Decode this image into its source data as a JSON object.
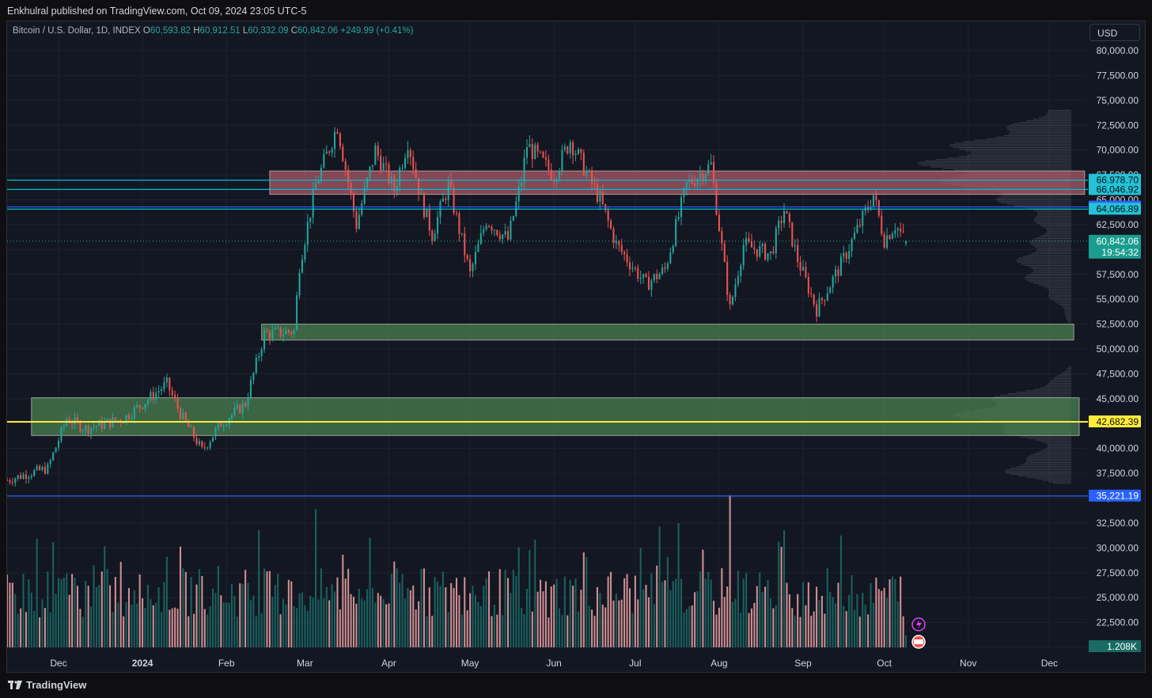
{
  "header": {
    "publisher": "Enkhulral published on TradingView.com, Oct 09, 2024 23:05 UTC-5"
  },
  "legend": {
    "symbol": "Bitcoin / U.S. Dollar, 1D, INDEX",
    "o_label": "O",
    "o_value": "60,593.82",
    "h_label": "H",
    "h_value": "60,912.51",
    "l_label": "L",
    "l_value": "60,332.09",
    "c_label": "C",
    "c_value": "60,842.06",
    "change": "+249.99 (+0.41%)"
  },
  "currency_button": "USD",
  "footer": {
    "brand": "TradingView"
  },
  "colors": {
    "background": "#131722",
    "up": "#26a69a",
    "down": "#ef5350",
    "resistance_zone": "#b95f6b",
    "support_zone": "#4e8a54",
    "yellow_line": "#ffeb3b",
    "blue_line": "#2962ff",
    "cyan_line": "#00bcd4"
  },
  "chart_data": {
    "type": "candlestick",
    "title": "Bitcoin / U.S. Dollar, 1D, INDEX",
    "y_ticks": [
      "80,000.00",
      "77,500.00",
      "75,000.00",
      "72,500.00",
      "70,000.00",
      "67,500.00",
      "65,000.00",
      "62,500.00",
      "60,000.00",
      "57,500.00",
      "55,000.00",
      "52,500.00",
      "50,000.00",
      "47,500.00",
      "45,000.00",
      "42,500.00",
      "40,000.00",
      "37,500.00",
      "35,000.00",
      "32,500.00",
      "30,000.00",
      "27,500.00",
      "25,000.00",
      "22,500.00",
      "20,000.00"
    ],
    "y_tick_values": [
      80000,
      77500,
      75000,
      72500,
      70000,
      67500,
      65000,
      62500,
      60000,
      57500,
      55000,
      52500,
      50000,
      47500,
      45000,
      42500,
      40000,
      37500,
      35000,
      32500,
      30000,
      27500,
      25000,
      22500,
      20000
    ],
    "ylim": [
      19650,
      81200
    ],
    "x_ticks": [
      "Dec",
      "2024",
      "Feb",
      "Mar",
      "Apr",
      "May",
      "Jun",
      "Jul",
      "Aug",
      "Sep",
      "Oct",
      "Nov",
      "Dec"
    ],
    "x_tick_dates": [
      "2023-12-01",
      "2024-01-01",
      "2024-02-01",
      "2024-03-01",
      "2024-04-01",
      "2024-05-01",
      "2024-06-01",
      "2024-07-01",
      "2024-08-01",
      "2024-09-01",
      "2024-10-01",
      "2024-11-01",
      "2024-12-01"
    ],
    "x_range": [
      "2023-11-12",
      "2024-12-12"
    ],
    "price_keypoints": [
      [
        "2023-11-12",
        36800
      ],
      [
        "2023-11-20",
        37500
      ],
      [
        "2023-11-27",
        38000
      ],
      [
        "2023-12-04",
        43000
      ],
      [
        "2023-12-11",
        42000
      ],
      [
        "2023-12-18",
        42500
      ],
      [
        "2023-12-25",
        43000
      ],
      [
        "2024-01-01",
        44500
      ],
      [
        "2024-01-10",
        46500
      ],
      [
        "2024-01-15",
        43500
      ],
      [
        "2024-01-23",
        39800
      ],
      [
        "2024-01-30",
        42500
      ],
      [
        "2024-02-08",
        44500
      ],
      [
        "2024-02-15",
        51500
      ],
      [
        "2024-02-26",
        51800
      ],
      [
        "2024-02-28",
        58500
      ],
      [
        "2024-03-05",
        66500
      ],
      [
        "2024-03-13",
        72500
      ],
      [
        "2024-03-20",
        62500
      ],
      [
        "2024-03-27",
        70000
      ],
      [
        "2024-04-03",
        66000
      ],
      [
        "2024-04-08",
        71000
      ],
      [
        "2024-04-13",
        65000
      ],
      [
        "2024-04-17",
        61500
      ],
      [
        "2024-04-23",
        66500
      ],
      [
        "2024-05-01",
        57500
      ],
      [
        "2024-05-07",
        63000
      ],
      [
        "2024-05-15",
        61000
      ],
      [
        "2024-05-20",
        67000
      ],
      [
        "2024-05-22",
        70500
      ],
      [
        "2024-06-01",
        67500
      ],
      [
        "2024-06-07",
        71000
      ],
      [
        "2024-06-18",
        65000
      ],
      [
        "2024-06-24",
        60500
      ],
      [
        "2024-07-05",
        56500
      ],
      [
        "2024-07-12",
        58000
      ],
      [
        "2024-07-20",
        66500
      ],
      [
        "2024-07-29",
        68500
      ],
      [
        "2024-08-05",
        54000
      ],
      [
        "2024-08-10",
        60500
      ],
      [
        "2024-08-20",
        59500
      ],
      [
        "2024-08-25",
        64000
      ],
      [
        "2024-08-30",
        59000
      ],
      [
        "2024-09-06",
        54000
      ],
      [
        "2024-09-15",
        58500
      ],
      [
        "2024-09-27",
        65500
      ],
      [
        "2024-10-01",
        61000
      ],
      [
        "2024-10-05",
        62500
      ],
      [
        "2024-10-09",
        60842
      ]
    ],
    "volume_spikes": [
      [
        "2024-03-05",
        33.9
      ],
      [
        "2024-08-05",
        35.3
      ]
    ],
    "volume_last": "1.208K",
    "zones": [
      {
        "name": "resistance",
        "y_top": 67900,
        "y_bottom": 65550,
        "x_start": "2024-02-17",
        "x_end": "2024-12-14",
        "color": "#b95f6b"
      },
      {
        "name": "support",
        "y_top": 52500,
        "y_bottom": 50900,
        "x_start": "2024-02-14",
        "x_end": "2024-12-10",
        "color": "#4e8a54"
      },
      {
        "name": "demand",
        "y_top": 45100,
        "y_bottom": 41300,
        "x_start": "2023-11-21",
        "x_end": "2024-12-12",
        "color": "#4e8a54"
      }
    ],
    "h_lines": [
      {
        "label": "66,978.70",
        "value": 66978.7,
        "color": "#00bcd4",
        "from": "start"
      },
      {
        "label": "66,046.92",
        "value": 66046.92,
        "color": "#00bcd4",
        "from": "start"
      },
      {
        "label": "64,287.43",
        "value": 64287.43,
        "color": "#2962ff",
        "from": "start"
      },
      {
        "label": "64,066.89",
        "value": 64066.89,
        "color": "#00bcd4",
        "from": "start"
      },
      {
        "label": "42,682.39",
        "value": 42682.39,
        "color": "#ffeb3b",
        "from": "start"
      },
      {
        "label": "35,221.19",
        "value": 35221.19,
        "color": "#2962ff",
        "from": "start"
      }
    ],
    "last_price": {
      "label": "60,842.06",
      "countdown": "19:54:32",
      "value": 60842.06
    }
  }
}
